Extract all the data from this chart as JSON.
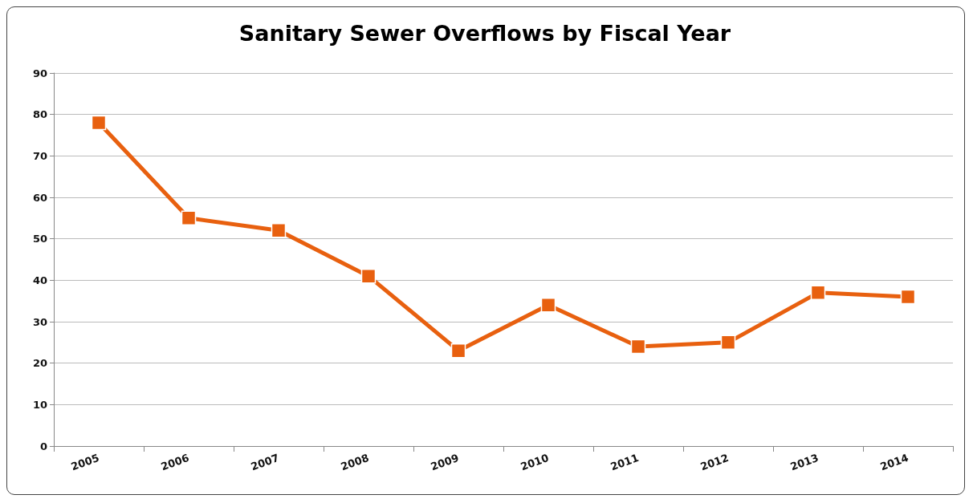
{
  "chart_data": {
    "type": "line",
    "title": "Sanitary Sewer Overflows by Fiscal Year",
    "categories": [
      "2005",
      "2006",
      "2007",
      "2008",
      "2009",
      "2010",
      "2011",
      "2012",
      "2013",
      "2014"
    ],
    "series": [
      {
        "color": "#e8600f",
        "values": [
          78,
          55,
          52,
          41,
          23,
          34,
          24,
          25,
          37,
          36
        ]
      }
    ],
    "ylim": [
      0,
      90
    ],
    "yticks": [
      0,
      10,
      20,
      30,
      40,
      50,
      60,
      70,
      80,
      90
    ],
    "grid": "y",
    "marker": "square",
    "line_style": "solid"
  }
}
